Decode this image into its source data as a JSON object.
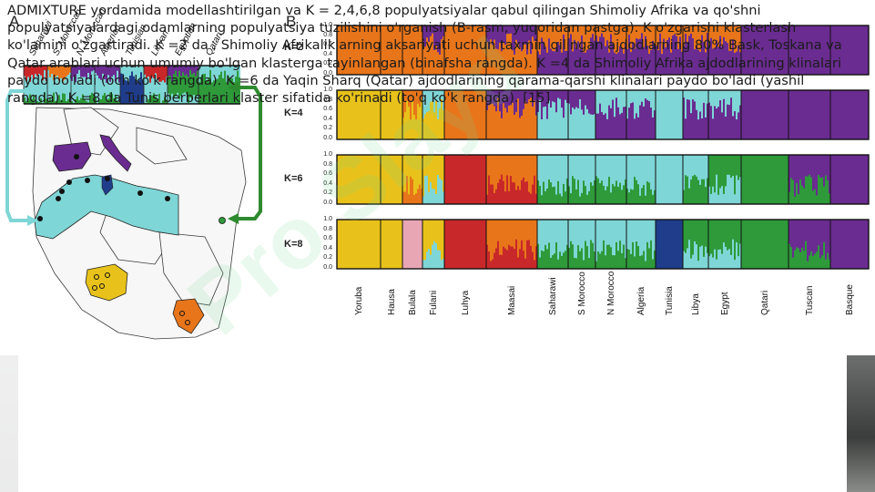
{
  "panel_a": {
    "letter": "A",
    "populations": [
      "Saharawi",
      "S. Moroccan",
      "N. Moroccan",
      "Algerian",
      "Tunisian",
      "Libyan",
      "Egyptian",
      "Qatari"
    ]
  },
  "panel_b": {
    "letter": "B",
    "y_ticks": [
      "1.0",
      "0.8",
      "0.6",
      "0.4",
      "0.2",
      "0.0"
    ],
    "k_values": [
      "K=2",
      "K=4",
      "K=6",
      "K=8"
    ],
    "populations": [
      "Yoruba",
      "Hausa",
      "Bulala",
      "Fulani",
      "Luhya",
      "Maasai",
      "Saharawi",
      "S Morocco",
      "N Morocco",
      "Algeria",
      "Tunisia",
      "Libya",
      "Egypt",
      "Qatari",
      "Tuscan",
      "Basque"
    ]
  },
  "caption": "ADMIXTURE yordamida modellashtirilgan va K = 2,4,6,8 populyatsiyalar qabul qilingan Shimoliy Afrika va qo'shni populyatsiyalardagi odamlarning populyatsiya tuzilishini o'rganish (B-rasm, yuqoridan pastga). K o'zgarishi klasterlash ko'lamini o'zgartiradi. K =2 da , Shimoliy Afrikaliklarning aksariyati uchun taxmin qilingan ajdodlarning 80% Bask, Toskana va Qatar arablari uchun umumiy bo'lgan klasterga tayinlangan (binafsha rangda). K =4 da Shimoliy Afrika ajdodlarining klinalari paydo bo'ladi (och ko'k rangda). K =6 da Yaqin Sharq (Qatar) ajdodlarining qarama-qarshi klinalari paydo bo'ladi (yashil rangda). K =8 da Tunis berberlari klaster sifatida ko'rinadi (to'q ko'k rangda). [15]",
  "colors": {
    "purple": "#6a2c91",
    "orange": "#e8751a",
    "yellow": "#e8c21a",
    "cyan": "#7fd6d6",
    "red": "#c8282a",
    "green": "#2e9a3a",
    "navy": "#1f3d8a",
    "pink": "#e8a6b4"
  }
}
